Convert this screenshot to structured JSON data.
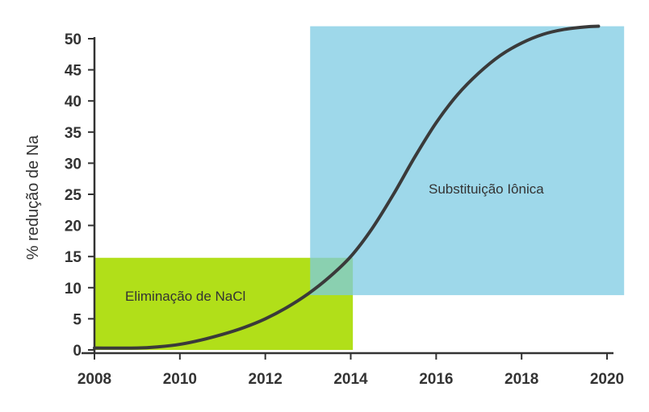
{
  "chart_data": {
    "type": "line",
    "title": "",
    "xlabel": "",
    "ylabel": "% redução de Na",
    "xlim": [
      2008,
      2020
    ],
    "ylim": [
      0,
      50
    ],
    "x_ticks": [
      2008,
      2010,
      2012,
      2014,
      2016,
      2018,
      2020
    ],
    "y_ticks": [
      0,
      5,
      10,
      15,
      20,
      25,
      30,
      35,
      40,
      45,
      50
    ],
    "grid": false,
    "line_color": "#3a3a3a",
    "series": [
      {
        "x": [
          2008.0,
          2009.0,
          2009.5,
          2010.0,
          2010.5,
          2011.0,
          2011.5,
          2012.0,
          2012.5,
          2013.0,
          2013.5,
          2014.0,
          2014.5,
          2015.0,
          2015.5,
          2016.0,
          2016.5,
          2017.0,
          2017.5,
          2018.0,
          2018.5,
          2019.0,
          2019.5,
          2019.8
        ],
        "y": [
          0.3,
          0.3,
          0.5,
          0.9,
          1.6,
          2.5,
          3.6,
          5.0,
          6.8,
          9.0,
          11.7,
          15.0,
          19.5,
          25.0,
          31.0,
          36.5,
          41.0,
          44.5,
          47.3,
          49.3,
          50.7,
          51.5,
          51.9,
          52.0
        ]
      }
    ],
    "regions": [
      {
        "label": "Eliminação de NaCl",
        "x": [
          2008,
          2014.05
        ],
        "y": [
          0,
          14.8
        ],
        "color": "#a8dc00"
      },
      {
        "label": "Substituição Iônica",
        "x": [
          2013.05,
          2020.4
        ],
        "y": [
          8.8,
          52.0
        ],
        "color": "#7ecbe3"
      }
    ]
  }
}
